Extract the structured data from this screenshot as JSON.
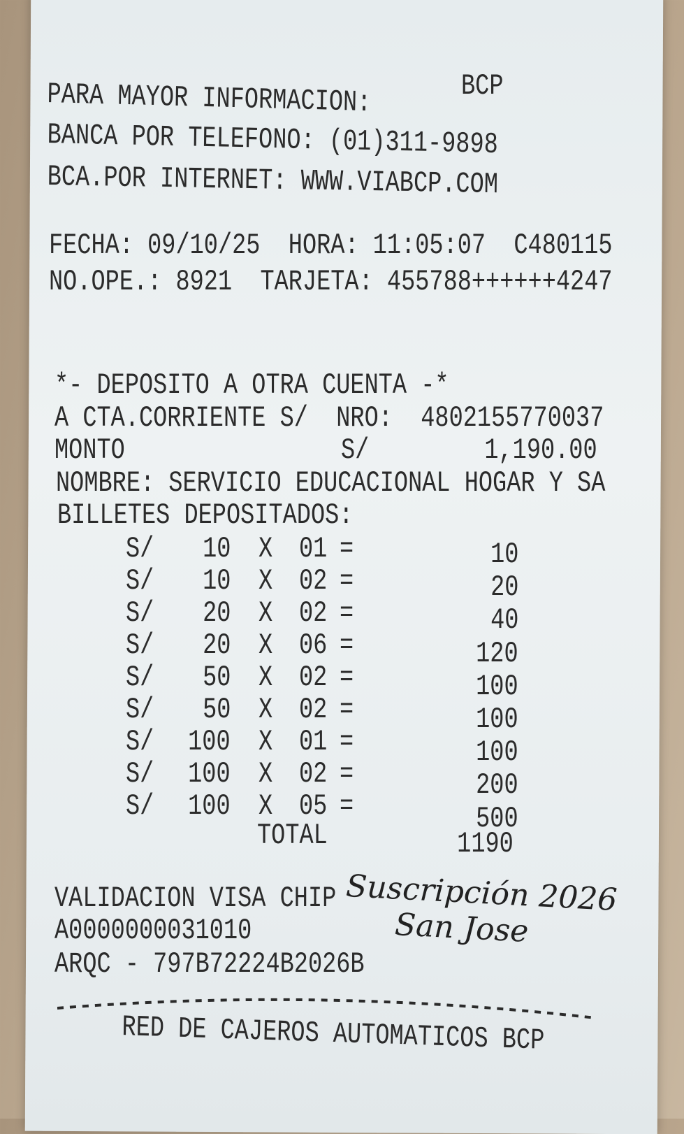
{
  "header": {
    "bank": "BCP",
    "line1": "PARA MAYOR INFORMACION:",
    "line2": "BANCA POR TELEFONO: (01)311-9898",
    "line3": "BCA.POR INTERNET: WWW.VIABCP.COM"
  },
  "transaction": {
    "fecha_line": "FECHA: 09/10/25  HORA: 11:05:07  C480115",
    "ope_line": "NO.OPE.: 8921  TARJETA: 455788++++++4247"
  },
  "deposit": {
    "title": "*- DEPOSITO A OTRA CUENTA -*",
    "account_line": "A CTA.CORRIENTE S/  NRO:  4802155770037",
    "monto_label": "MONTO",
    "monto_currency": "S/",
    "monto_value": "1,190.00",
    "nombre_line": "NOMBRE: SERVICIO EDUCACIONAL HOGAR Y SA",
    "billetes_label": "BILLETES DEPOSITADOS:"
  },
  "bills": [
    {
      "cur": "S/",
      "den": "10",
      "x": "X",
      "qty": "01",
      "eq": "=",
      "amt": "10"
    },
    {
      "cur": "S/",
      "den": "10",
      "x": "X",
      "qty": "02",
      "eq": "=",
      "amt": "20"
    },
    {
      "cur": "S/",
      "den": "20",
      "x": "X",
      "qty": "02",
      "eq": "=",
      "amt": "40"
    },
    {
      "cur": "S/",
      "den": "20",
      "x": "X",
      "qty": "06",
      "eq": "=",
      "amt": "120"
    },
    {
      "cur": "S/",
      "den": "50",
      "x": "X",
      "qty": "02",
      "eq": "=",
      "amt": "100"
    },
    {
      "cur": "S/",
      "den": "50",
      "x": "X",
      "qty": "02",
      "eq": "=",
      "amt": "100"
    },
    {
      "cur": "S/",
      "den": "100",
      "x": "X",
      "qty": "01",
      "eq": "=",
      "amt": "100"
    },
    {
      "cur": "S/",
      "den": "100",
      "x": "X",
      "qty": "02",
      "eq": "=",
      "amt": "200"
    },
    {
      "cur": "S/",
      "den": "100",
      "x": "X",
      "qty": "05",
      "eq": "=",
      "amt": "500"
    }
  ],
  "total": {
    "label": "TOTAL",
    "value": "1190"
  },
  "validation": {
    "line1": "VALIDACION VISA CHIP",
    "line2": "A0000000031010",
    "line3": "ARQC - 797B72224B2026B"
  },
  "handwritten": {
    "line1": "Suscripción 2026",
    "line2": "San Jose"
  },
  "footer": {
    "text": "RED DE CAJEROS AUTOMATICOS BCP"
  }
}
